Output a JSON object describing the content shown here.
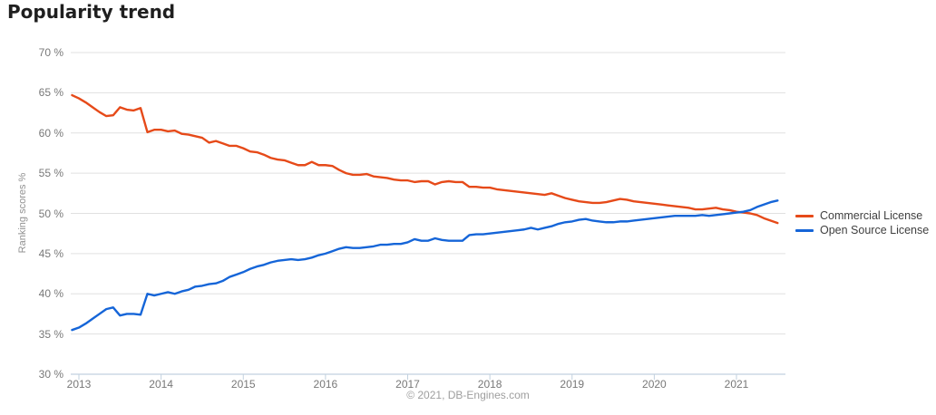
{
  "page": {
    "background": "#ffffff"
  },
  "footer": {
    "text": "© 2021, DB-Engines.com"
  },
  "chart_data": {
    "type": "line",
    "title": "Popularity trend",
    "ylabel": "Ranking scores %",
    "xlabel": "",
    "ylim": [
      30,
      70
    ],
    "grid": "horizontal-only",
    "legend_position": "right-middle",
    "grid_color": "#e0e0e0",
    "axis_color": "#c2d1df",
    "tick_label_color": "#787878",
    "x_start": "2012-12",
    "x_interval": "monthly",
    "x_end": "2021-07",
    "ytick_values": [
      70,
      65,
      60,
      55,
      50,
      45,
      40,
      35,
      30
    ],
    "ytick_labels": [
      "70 %",
      "65 %",
      "60 %",
      "55 %",
      "50 %",
      "45 %",
      "40 %",
      "35 %",
      "30 %"
    ],
    "xtick_values": [
      2013,
      2014,
      2015,
      2016,
      2017,
      2018,
      2019,
      2020,
      2021
    ],
    "xtick_labels": [
      "2013",
      "2014",
      "2015",
      "2016",
      "2017",
      "2018",
      "2019",
      "2020",
      "2021"
    ],
    "series": [
      {
        "name": "Commercial License",
        "color": "#e64a19",
        "values": [
          64.7,
          64.3,
          63.8,
          63.2,
          62.6,
          62.1,
          62.2,
          63.2,
          62.9,
          62.8,
          63.1,
          60.1,
          60.4,
          60.4,
          60.2,
          60.3,
          59.9,
          59.8,
          59.6,
          59.4,
          58.8,
          59.0,
          58.7,
          58.4,
          58.4,
          58.1,
          57.7,
          57.6,
          57.3,
          56.9,
          56.7,
          56.6,
          56.3,
          56.0,
          56.0,
          56.4,
          56.0,
          56.0,
          55.9,
          55.4,
          55.0,
          54.8,
          54.8,
          54.9,
          54.6,
          54.5,
          54.4,
          54.2,
          54.1,
          54.1,
          53.9,
          54.0,
          54.0,
          53.6,
          53.9,
          54.0,
          53.9,
          53.9,
          53.3,
          53.3,
          53.2,
          53.2,
          53.0,
          52.9,
          52.8,
          52.7,
          52.6,
          52.5,
          52.4,
          52.3,
          52.5,
          52.2,
          51.9,
          51.7,
          51.5,
          51.4,
          51.3,
          51.3,
          51.4,
          51.6,
          51.8,
          51.7,
          51.5,
          51.4,
          51.3,
          51.2,
          51.1,
          51.0,
          50.9,
          50.8,
          50.7,
          50.5,
          50.5,
          50.6,
          50.7,
          50.5,
          50.4,
          50.2,
          50.1,
          50.0,
          49.8,
          49.4,
          49.1,
          48.8
        ]
      },
      {
        "name": "Open Source License",
        "color": "#1565d8",
        "values": [
          35.5,
          35.8,
          36.3,
          36.9,
          37.5,
          38.1,
          38.3,
          37.3,
          37.5,
          37.5,
          37.4,
          40.0,
          39.8,
          40.0,
          40.2,
          40.0,
          40.3,
          40.5,
          40.9,
          41.0,
          41.2,
          41.3,
          41.6,
          42.1,
          42.4,
          42.7,
          43.1,
          43.4,
          43.6,
          43.9,
          44.1,
          44.2,
          44.3,
          44.2,
          44.3,
          44.5,
          44.8,
          45.0,
          45.3,
          45.6,
          45.8,
          45.7,
          45.7,
          45.8,
          45.9,
          46.1,
          46.1,
          46.2,
          46.2,
          46.4,
          46.8,
          46.6,
          46.6,
          46.9,
          46.7,
          46.6,
          46.6,
          46.6,
          47.3,
          47.4,
          47.4,
          47.5,
          47.6,
          47.7,
          47.8,
          47.9,
          48.0,
          48.2,
          48.0,
          48.2,
          48.4,
          48.7,
          48.9,
          49.0,
          49.2,
          49.3,
          49.1,
          49.0,
          48.9,
          48.9,
          49.0,
          49.0,
          49.1,
          49.2,
          49.3,
          49.4,
          49.5,
          49.6,
          49.7,
          49.7,
          49.7,
          49.7,
          49.8,
          49.7,
          49.8,
          49.9,
          50.0,
          50.1,
          50.2,
          50.4,
          50.8,
          51.1,
          51.4,
          51.6
        ]
      }
    ]
  }
}
